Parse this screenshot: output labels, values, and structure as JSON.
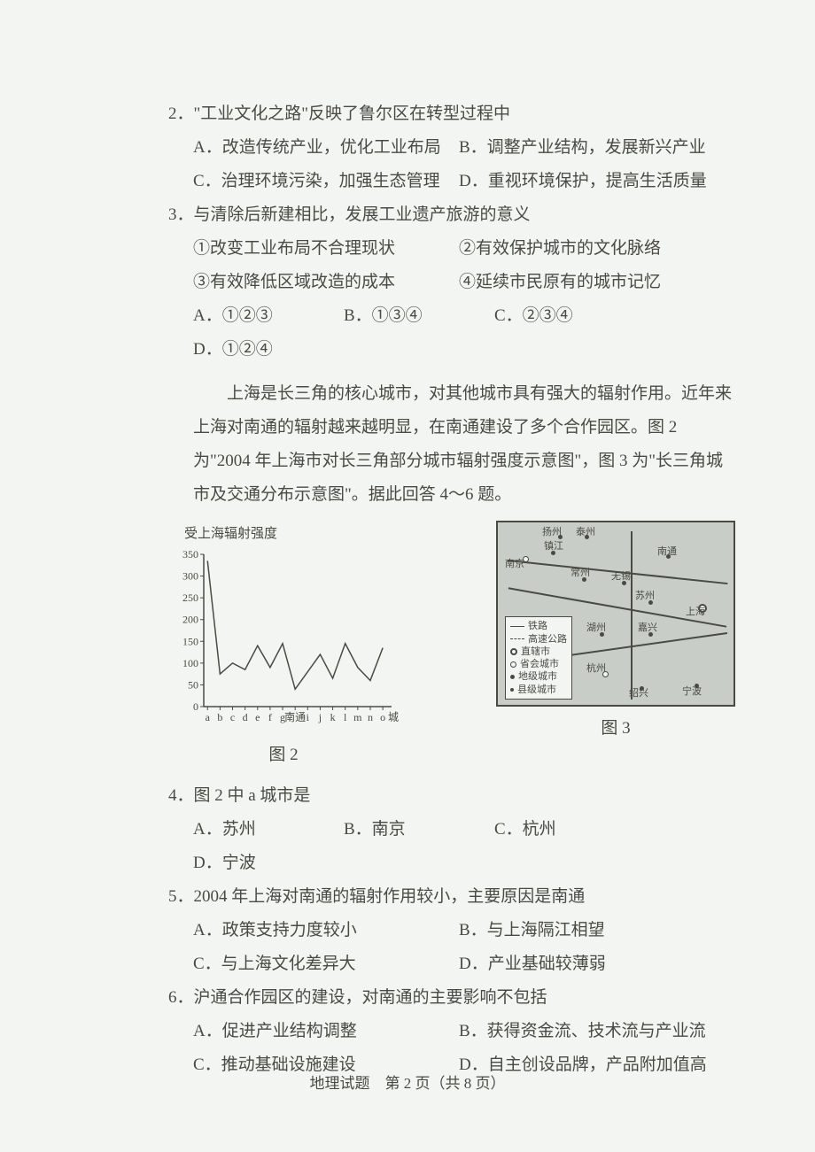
{
  "q2": {
    "stem": "2．\"工业文化之路\"反映了鲁尔区在转型过程中",
    "A": "A．改造传统产业，优化工业布局",
    "B": "B．调整产业结构，发展新兴产业",
    "C": "C．治理环境污染，加强生态管理",
    "D": "D．重视环境保护，提高生活质量"
  },
  "q3": {
    "stem": "3．与清除后新建相比，发展工业遗产旅游的意义",
    "s1": "①改变工业布局不合理现状",
    "s2": "②有效保护城市的文化脉络",
    "s3": "③有效降低区域改造的成本",
    "s4": "④延续市民原有的城市记忆",
    "A": "A．①②③",
    "B": "B．①③④",
    "C": "C．②③④",
    "D": "D．①②④"
  },
  "passage": "上海是长三角的核心城市，对其他城市具有强大的辐射作用。近年来上海对南通的辐射越来越明显，在南通建设了多个合作园区。图 2 为\"2004 年上海市对长三角部分城市辐射强度示意图\"，图 3 为\"长三角城市及交通分布示意图\"。据此回答 4～6 题。",
  "fig2_caption": "图 2",
  "fig3_caption": "图 3",
  "chart": {
    "title": "受上海辐射强度",
    "categories": [
      "a",
      "b",
      "c",
      "d",
      "e",
      "f",
      "g",
      "南通",
      "i",
      "j",
      "k",
      "l",
      "m",
      "n",
      "o"
    ],
    "x_axis_label_suffix": "城市",
    "y_ticks": [
      0,
      50,
      100,
      150,
      200,
      250,
      300,
      350
    ],
    "values": [
      335,
      75,
      100,
      85,
      140,
      90,
      145,
      40,
      80,
      120,
      65,
      145,
      90,
      60,
      135
    ],
    "line_color": "#4a4a45",
    "axis_color": "#4a4a45",
    "tick_font_size": 12,
    "background": "#f3f5f2",
    "ylim": [
      0,
      350
    ],
    "line_width": 1.5
  },
  "map": {
    "legend": {
      "rail": "铁路",
      "highway": "高速公路",
      "muni": "直辖市",
      "provcap": "省会城市",
      "pref": "地级城市",
      "county": "县级城市"
    },
    "cities": {
      "yangzhou": "扬州",
      "taizhou": "泰州",
      "nanjing": "南京",
      "zhenjiang": "镇江",
      "nantong": "南通",
      "changzhou": "常州",
      "wuxi": "无锡",
      "suzhou": "苏州",
      "shanghai": "上海",
      "huzhou": "湖州",
      "jiaxing": "嘉兴",
      "hangzhou": "杭州",
      "shaoxing": "绍兴",
      "ningbo": "宁波"
    },
    "colors": {
      "land": "#c9cdc8",
      "line": "#4a4a45",
      "legend_bg": "#f3f5f2"
    }
  },
  "q4": {
    "stem": "4．图 2 中 a 城市是",
    "A": "A．苏州",
    "B": "B．南京",
    "C": "C．杭州",
    "D": "D．宁波"
  },
  "q5": {
    "stem": "5．2004 年上海对南通的辐射作用较小，主要原因是南通",
    "A": "A．政策支持力度较小",
    "B": "B．与上海隔江相望",
    "C": "C．与上海文化差异大",
    "D": "D．产业基础较薄弱"
  },
  "q6": {
    "stem": "6．沪通合作园区的建设，对南通的主要影响不包括",
    "A": "A．促进产业结构调整",
    "B": "B．获得资金流、技术流与产业流",
    "C": "C．推动基础设施建设",
    "D": "D．自主创设品牌，产品附加值高"
  },
  "footer": "地理试题　第 2 页（共 8 页）"
}
